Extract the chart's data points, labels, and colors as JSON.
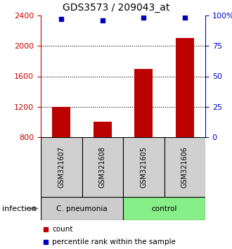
{
  "title": "GDS3573 / 209043_at",
  "samples": [
    "GSM321607",
    "GSM321608",
    "GSM321605",
    "GSM321606"
  ],
  "counts": [
    1200,
    1000,
    1700,
    2100
  ],
  "percentile_ranks": [
    97,
    96,
    98,
    98
  ],
  "baseline": 800,
  "ylim_left": [
    800,
    2400
  ],
  "ylim_right": [
    0,
    100
  ],
  "yticks_left": [
    800,
    1200,
    1600,
    2000,
    2400
  ],
  "yticks_right": [
    0,
    25,
    50,
    75,
    100
  ],
  "yticklabels_right": [
    "0",
    "25",
    "50",
    "75",
    "100%"
  ],
  "bar_color": "#bb0000",
  "dot_color": "#0000bb",
  "left_axis_color": "#cc0000",
  "right_axis_color": "#0000cc",
  "group_pneumonia_color": "#cccccc",
  "group_control_color": "#88ee88",
  "sample_box_color": "#d0d0d0",
  "bar_width": 0.45,
  "grid_ticks": [
    1200,
    1600,
    2000
  ],
  "group_label": "infection"
}
